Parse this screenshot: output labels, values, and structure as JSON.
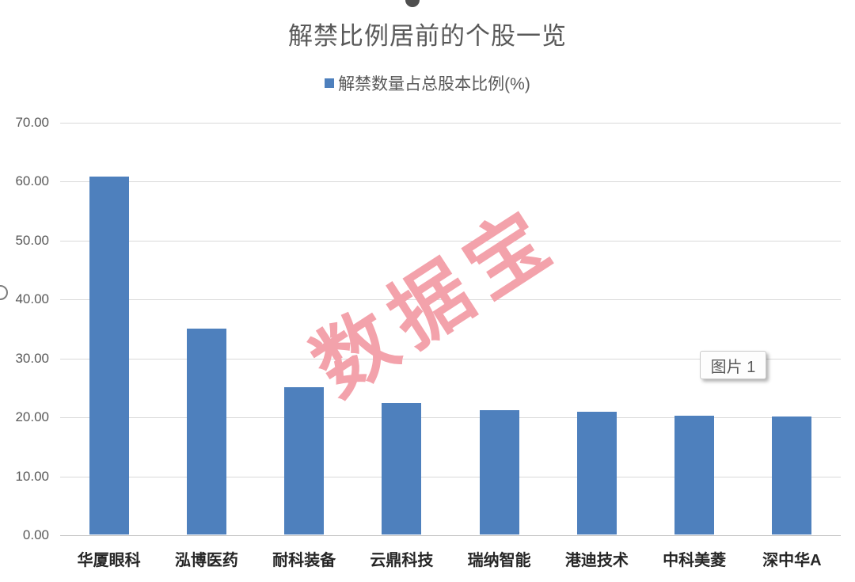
{
  "window": {
    "selection_label": "图片 1"
  },
  "chart_data": {
    "type": "bar",
    "title": "解禁比例居前的个股一览",
    "legend_entries": [
      "解禁数量占总股本比例(%)"
    ],
    "legend_position": "top",
    "categories": [
      "华厦眼科",
      "泓博医药",
      "耐科装备",
      "云鼎科技",
      "瑞纳智能",
      "港迪技术",
      "中科美菱",
      "深中华A"
    ],
    "values": [
      60.8,
      35.0,
      25.0,
      22.4,
      21.1,
      20.9,
      20.2,
      20.0
    ],
    "xlabel": "",
    "ylabel": "",
    "ylim": [
      0,
      70
    ],
    "yticks": [
      70,
      60,
      50,
      40,
      30,
      20,
      10,
      0
    ],
    "ytick_labels": [
      "70.00",
      "60.00",
      "50.00",
      "40.00",
      "30.00",
      "20.00",
      "10.00",
      "0.00"
    ],
    "grid": true,
    "bar_color": "#4E80BD"
  },
  "watermark": {
    "text": "数据宝",
    "color": "#F3A2AB"
  },
  "colors": {
    "accent_blue": "#4E80BD",
    "text_gray": "#595959",
    "xlabel_dark": "#262626",
    "gridline": "#D9D9D9",
    "axis_line": "#BFBFBF",
    "watermark_pink": "#F3A2AB"
  }
}
